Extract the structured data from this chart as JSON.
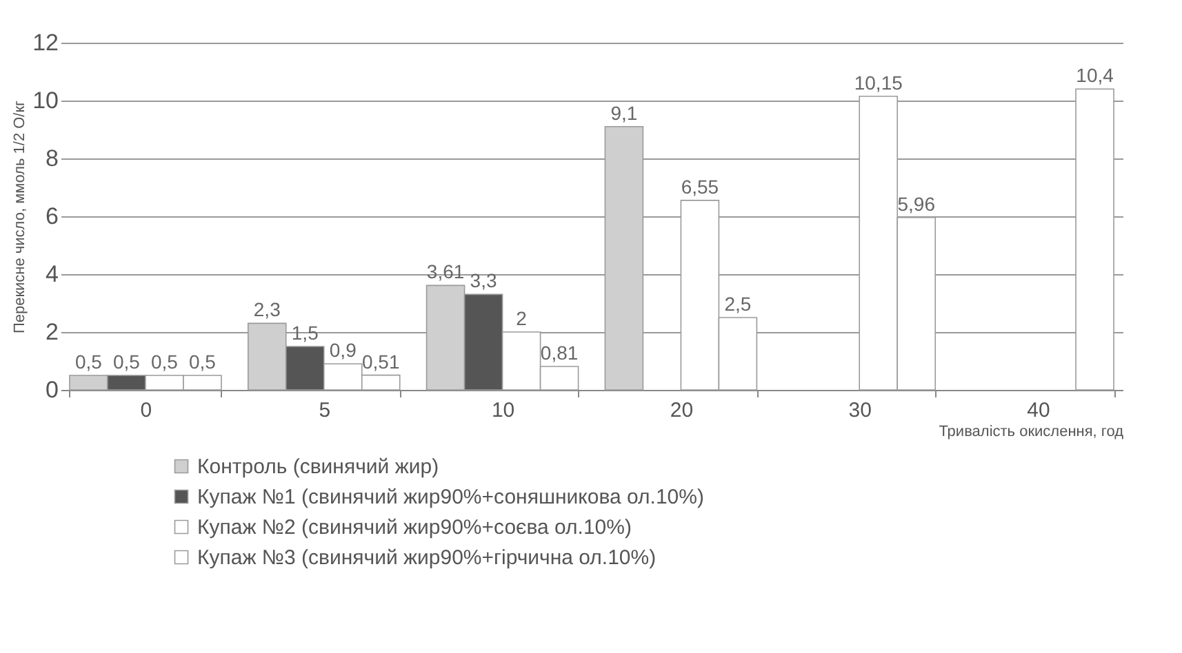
{
  "chart_data": {
    "type": "bar",
    "categories": [
      "0",
      "5",
      "10",
      "20",
      "30",
      "40"
    ],
    "xlabel": "Тривалість окислення, год",
    "ylabel": "Перекисне число, ммоль 1/2 О/кг",
    "ylim": [
      0,
      12
    ],
    "yticks": [
      0,
      2,
      4,
      6,
      8,
      10,
      12
    ],
    "grid": "y",
    "legend": "bottom",
    "series": [
      {
        "name": "Контроль (свинячий жир)",
        "color": "#cfcfcf",
        "values": [
          0.5,
          2.3,
          3.61,
          9.1,
          null,
          null
        ],
        "value_labels": [
          "0,5",
          "2,3",
          "3,61",
          "9,1",
          null,
          null
        ]
      },
      {
        "name": "Купаж №1 (свинячий жир90%+соняшникова ол.10%)",
        "color": "#555555",
        "values": [
          0.5,
          1.5,
          3.3,
          null,
          null,
          null
        ],
        "value_labels": [
          "0,5",
          "1,5",
          "3,3",
          null,
          null,
          null
        ]
      },
      {
        "name": "Купаж №2 (свинячий жир90%+соєва ол.10%)",
        "color": "#ffffff",
        "values": [
          0.5,
          0.9,
          2,
          6.55,
          10.15,
          null
        ],
        "value_labels": [
          "0,5",
          "0,9",
          "2",
          "6,55",
          "10,15",
          null
        ]
      },
      {
        "name": "Купаж №3 (свинячий жир90%+гірчична ол.10%)",
        "color": "#ffffff",
        "values": [
          0.5,
          0.51,
          0.81,
          2.5,
          5.96,
          10.4
        ],
        "value_labels": [
          "0,5",
          "0,51",
          "0,81",
          "2,5",
          "5,96",
          "10,4"
        ]
      }
    ]
  }
}
